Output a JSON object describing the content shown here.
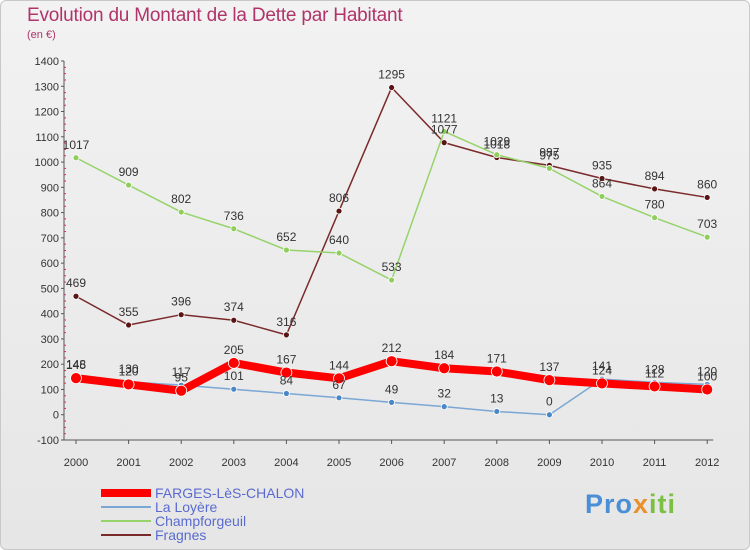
{
  "title": "Evolution du Montant de la Dette par Habitant",
  "unit": "(en €)",
  "logo": {
    "p1": "Pro",
    "p2": "x",
    "p3": "iti"
  },
  "chart_data": {
    "type": "line",
    "title": "Evolution du Montant de la Dette par Habitant",
    "subtitle": "(en €)",
    "xlabel": "",
    "ylabel": "",
    "categories": [
      "2000",
      "2001",
      "2002",
      "2003",
      "2004",
      "2005",
      "2006",
      "2007",
      "2008",
      "2009",
      "2010",
      "2011",
      "2012"
    ],
    "ylim": [
      -100,
      1400
    ],
    "yticks": [
      -100,
      0,
      100,
      200,
      300,
      400,
      500,
      600,
      700,
      800,
      900,
      1000,
      1100,
      1200,
      1300,
      1400
    ],
    "grid": false,
    "legend_position": "bottom-left",
    "series": [
      {
        "name": "FARGES-LèS-CHALON",
        "color": "#ff0000",
        "width": 8,
        "values": [
          145,
          120,
          95,
          205,
          167,
          144,
          212,
          184,
          171,
          137,
          124,
          112,
          100
        ],
        "labels": [
          "145",
          "120",
          "95",
          "205",
          "167",
          "144",
          "212",
          "184",
          "171",
          "137",
          "124",
          "112",
          "100"
        ]
      },
      {
        "name": "La Loyère",
        "color": "#7ba7d4",
        "width": 1.5,
        "values": [
          148,
          130,
          117,
          101,
          84,
          67,
          49,
          32,
          13,
          0,
          141,
          128,
          120
        ],
        "labels": [
          "148",
          "130",
          "117",
          "101",
          "84",
          "67",
          "49",
          "32",
          "13",
          "0",
          "141",
          "128",
          "120"
        ]
      },
      {
        "name": "Champforgeuil",
        "color": "#96d36a",
        "width": 1.5,
        "values": [
          1017,
          909,
          802,
          736,
          652,
          640,
          533,
          1121,
          1029,
          975,
          864,
          780,
          703
        ],
        "labels": [
          "1017",
          "909",
          "802",
          "736",
          "652",
          "640",
          "533",
          "1121",
          "1029",
          "975",
          "864",
          "780",
          "703"
        ]
      },
      {
        "name": "Fragnes",
        "color": "#7a2a2a",
        "width": 1.5,
        "values": [
          469,
          355,
          396,
          374,
          316,
          806,
          1295,
          1077,
          1018,
          987,
          935,
          894,
          860
        ],
        "labels": [
          "469",
          "355",
          "396",
          "374",
          "316",
          "806",
          "1295",
          "1077",
          "1018",
          "987",
          "935",
          "894",
          "860"
        ]
      }
    ]
  }
}
